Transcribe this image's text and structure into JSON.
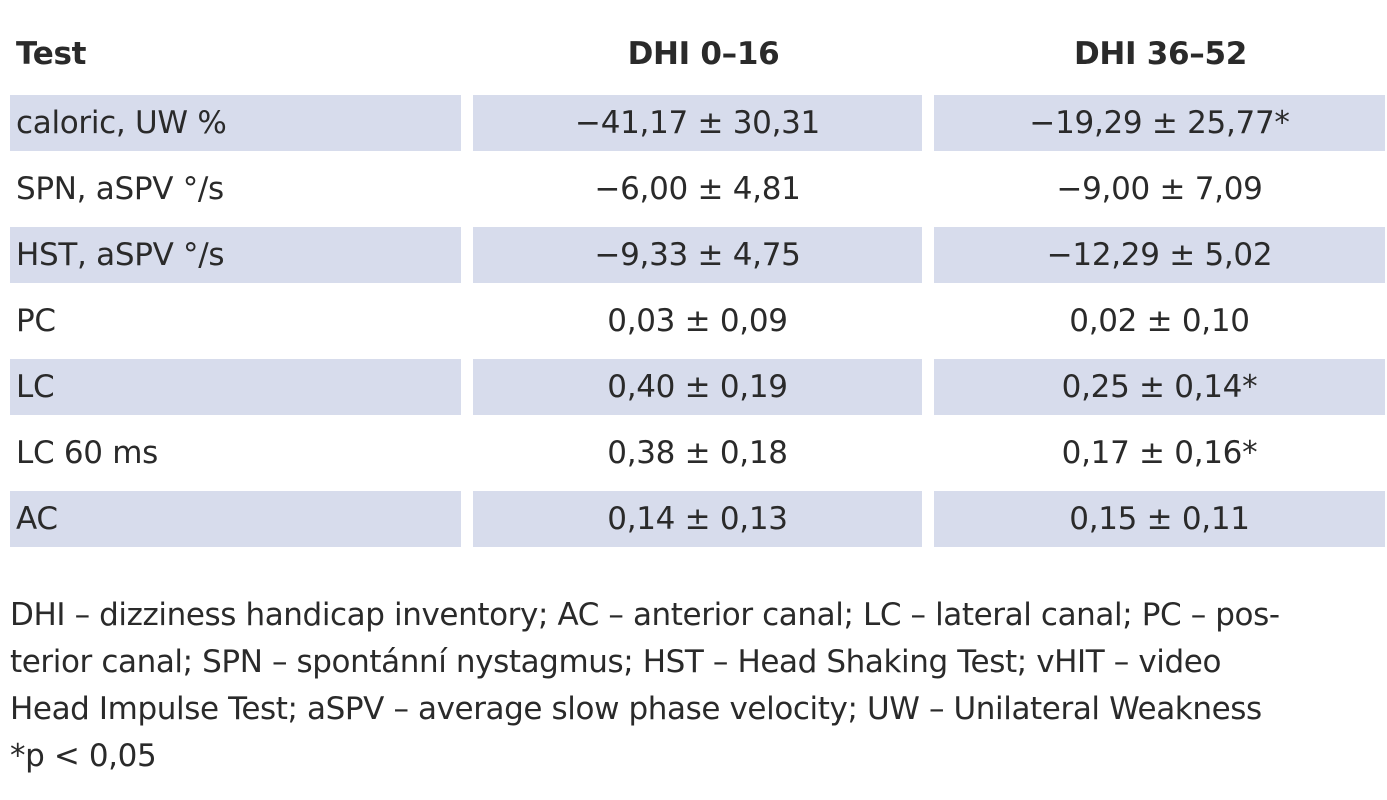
{
  "table": {
    "headers": [
      "Test",
      "DHI 0–16",
      "DHI 36–52"
    ],
    "rows": [
      {
        "test": "caloric, UW %",
        "dhi_0_16": "−41,17 ± 30,31",
        "dhi_36_52": "−19,29 ± 25,77*",
        "shaded": true
      },
      {
        "test": "SPN, aSPV °/s",
        "dhi_0_16": "−6,00 ± 4,81",
        "dhi_36_52": "−9,00 ± 7,09",
        "shaded": false
      },
      {
        "test": "HST, aSPV °/s",
        "dhi_0_16": "−9,33 ± 4,75",
        "dhi_36_52": "−12,29 ± 5,02",
        "shaded": true
      },
      {
        "test": "PC",
        "dhi_0_16": "0,03 ± 0,09",
        "dhi_36_52": "0,02 ± 0,10",
        "shaded": false
      },
      {
        "test": "LC",
        "dhi_0_16": "0,40 ± 0,19",
        "dhi_36_52": "0,25 ± 0,14*",
        "shaded": true
      },
      {
        "test": "LC 60 ms",
        "dhi_0_16": "0,38 ± 0,18",
        "dhi_36_52": "0,17 ± 0,16*",
        "shaded": false
      },
      {
        "test": "AC",
        "dhi_0_16": "0,14 ± 0,13",
        "dhi_36_52": "0,15 ± 0,11",
        "shaded": true
      }
    ],
    "shade_color": "#d7dcec"
  },
  "footnote": {
    "line1": "DHI – dizziness handicap inventory; AC – anterior canal; LC – lateral canal; PC – pos-",
    "line2": "terior canal; SPN – spontánní nystagmus; HST – Head Shaking Test; vHIT – video",
    "line3": "Head Impulse Test; aSPV – average slow phase velocity; UW – Unilateral Weakness",
    "line4": "*p < 0,05"
  }
}
